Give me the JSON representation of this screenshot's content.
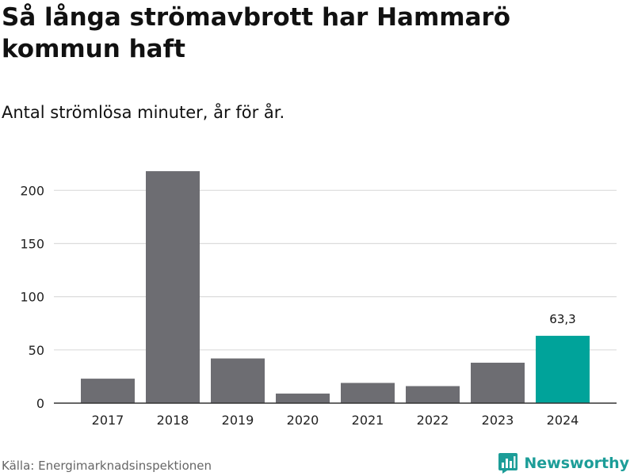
{
  "title": "Så långa strömavbrott har Hammarö kommun haft",
  "subtitle": "Antal strömlösa minuter, år för år.",
  "source": "Källa: Energimarknadsinspektionen",
  "brand": {
    "name": "Newsworthy",
    "icon": "newsworthy-logo-icon"
  },
  "colors": {
    "bar_default": "#6d6d72",
    "bar_highlight": "#00a39a",
    "grid": "#dcdcdc",
    "axis": "#333333",
    "brand": "#1c9d98"
  },
  "chart_data": {
    "type": "bar",
    "categories": [
      "2017",
      "2018",
      "2019",
      "2020",
      "2021",
      "2022",
      "2023",
      "2024"
    ],
    "values": [
      23,
      218,
      42,
      9,
      19,
      16,
      38,
      63.3
    ],
    "highlight_index": 7,
    "data_labels": [
      {
        "index": 7,
        "text": "63,3"
      }
    ],
    "ylim": [
      0,
      230
    ],
    "yticks": [
      0,
      50,
      100,
      150,
      200
    ],
    "grid": true,
    "xlabel": "",
    "ylabel": ""
  }
}
